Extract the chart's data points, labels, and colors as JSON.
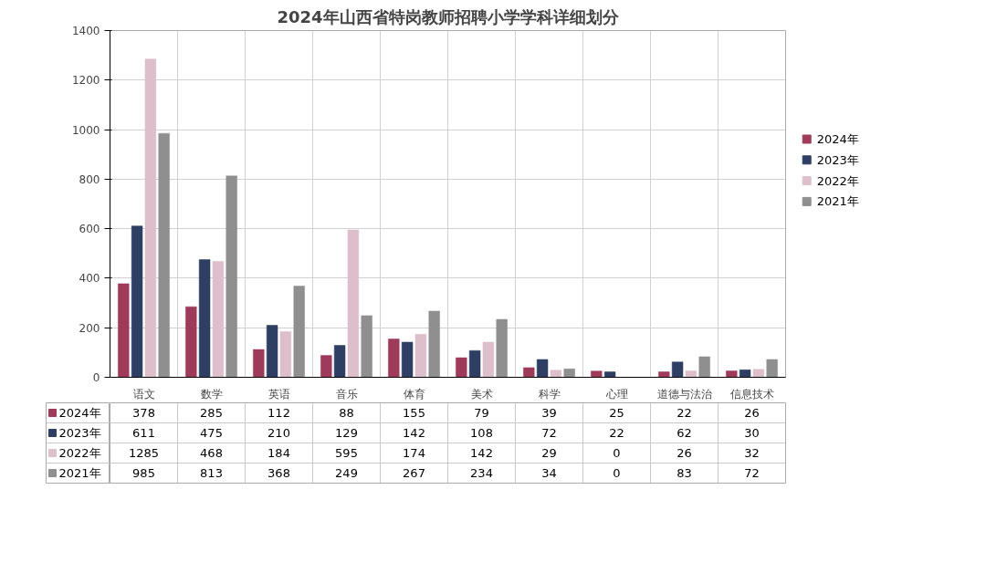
{
  "chart_data": {
    "type": "bar",
    "title": "2024年山西省特岗教师招聘小学学科详细划分",
    "categories": [
      "语文",
      "数学",
      "英语",
      "音乐",
      "体育",
      "美术",
      "科学",
      "心理",
      "道德与法治",
      "信息技术"
    ],
    "series": [
      {
        "name": "2024年",
        "color": "#9e3a5a",
        "values": [
          378,
          285,
          112,
          88,
          155,
          79,
          39,
          25,
          22,
          26
        ]
      },
      {
        "name": "2023年",
        "color": "#2e3f63",
        "values": [
          611,
          475,
          210,
          129,
          142,
          108,
          72,
          22,
          62,
          30
        ]
      },
      {
        "name": "2022年",
        "color": "#dcbfcb",
        "values": [
          1285,
          468,
          184,
          595,
          174,
          142,
          29,
          0,
          26,
          32
        ]
      },
      {
        "name": "2021年",
        "color": "#8f8f8f",
        "values": [
          985,
          813,
          368,
          249,
          267,
          234,
          34,
          0,
          83,
          72
        ]
      }
    ],
    "ylim": [
      0,
      1400
    ],
    "yticks": [
      0,
      200,
      400,
      600,
      800,
      1000,
      1200,
      1400
    ],
    "grid": true,
    "legend": "right",
    "data_labels": true
  }
}
